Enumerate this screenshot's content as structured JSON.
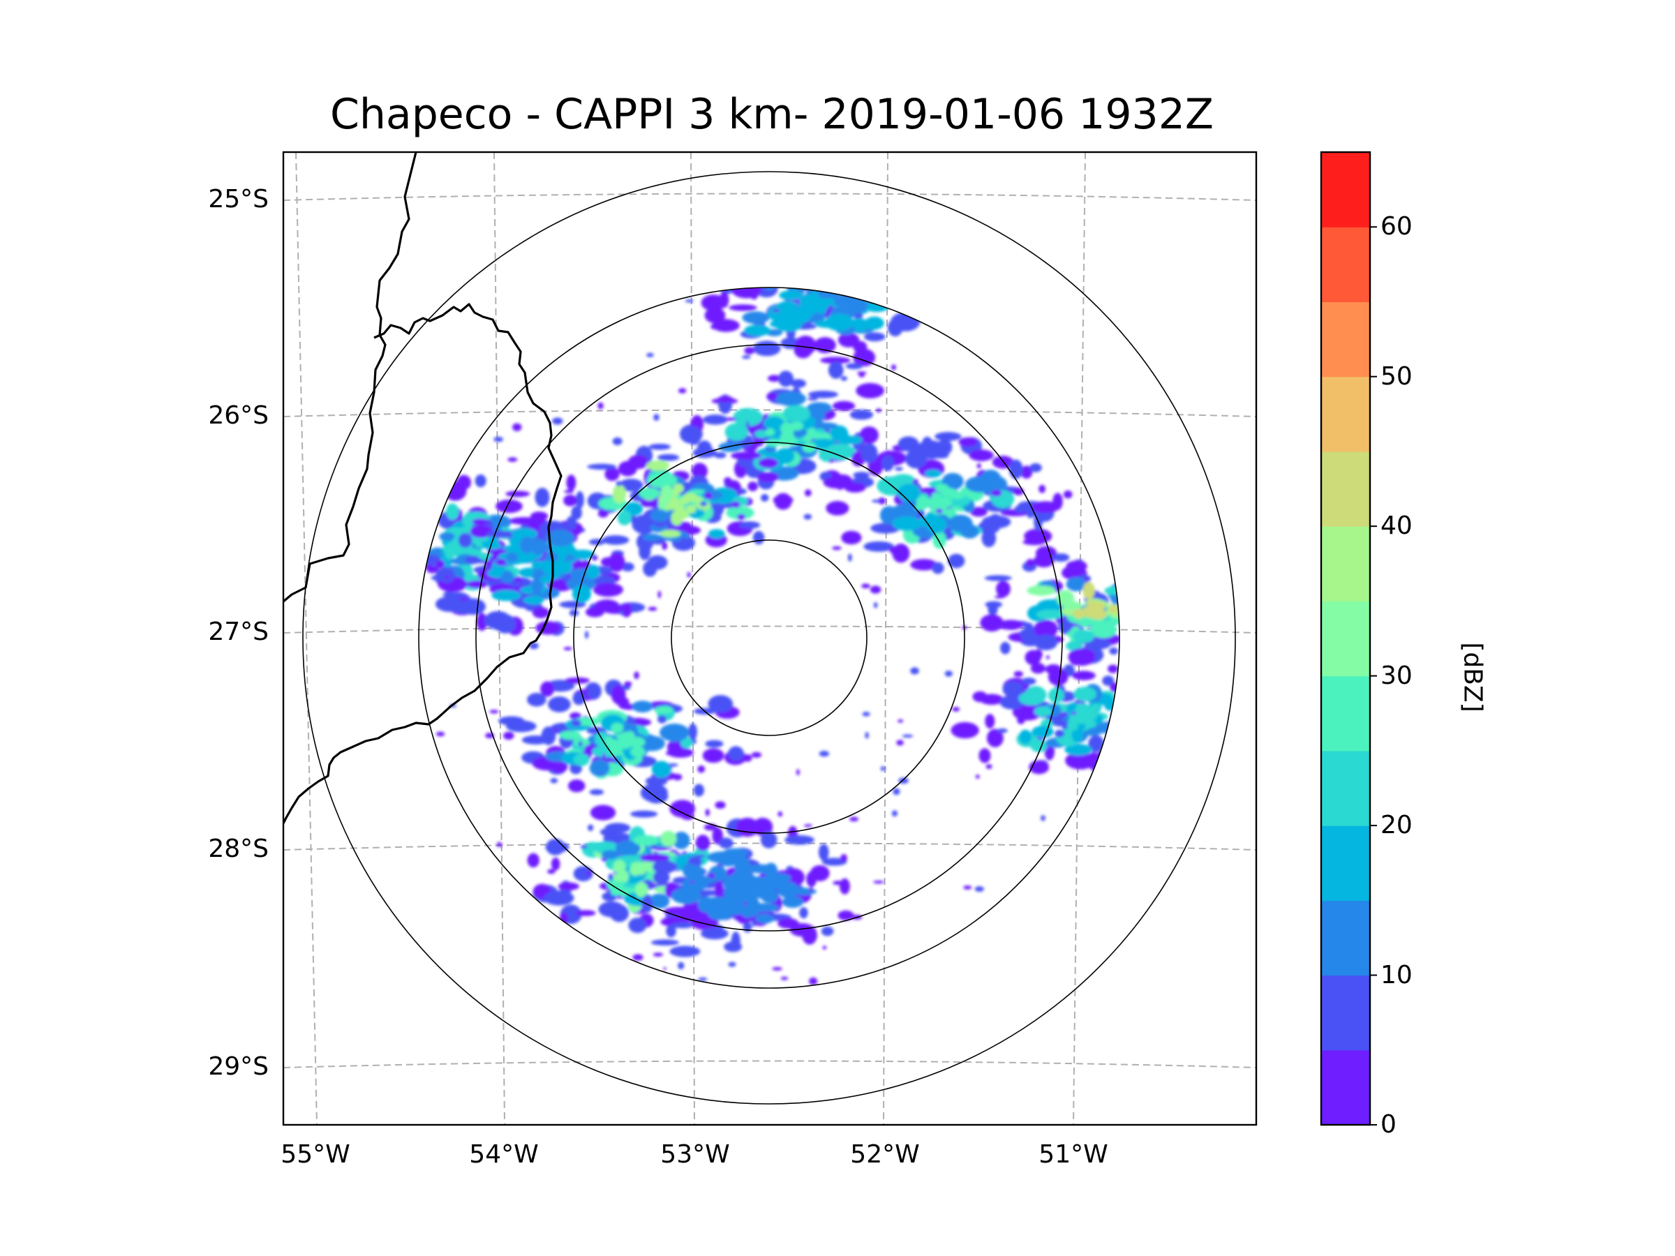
{
  "title": "Chapeco - CAPPI 3 km- 2019-01-06 1932Z",
  "lat_labels": [
    "25°S",
    "26°S",
    "27°S",
    "28°S",
    "29°S"
  ],
  "lon_labels": [
    "55°W",
    "54°W",
    "53°W",
    "52°W",
    "51°W"
  ],
  "colorbar": {
    "unit": "[dBZ]",
    "tick_labels": [
      "0",
      "10",
      "20",
      "30",
      "40",
      "50",
      "60"
    ],
    "colors": [
      "#6e1eff",
      "#4a52f5",
      "#2587ea",
      "#05b6e0",
      "#2ad9d2",
      "#4cf2bd",
      "#83fca5",
      "#a6f68c",
      "#cddb78",
      "#f1bf68",
      "#ff8e50",
      "#ff5937",
      "#fe1f1c"
    ]
  },
  "chart_data": {
    "type": "heatmap",
    "title": "Chapeco - CAPPI 3 km- 2019-01-06 1932Z",
    "xlabel": "",
    "ylabel": "",
    "x_ticks": [
      "55°W",
      "54°W",
      "53°W",
      "52°W",
      "51°W"
    ],
    "y_ticks": [
      "25°S",
      "26°S",
      "27°S",
      "28°S",
      "29°S"
    ],
    "xlim": [
      -55.18,
      -50.07
    ],
    "ylim": [
      -29.28,
      -24.78
    ],
    "colorbar_label": "[dBZ]",
    "colorbar_range": [
      0,
      65
    ],
    "colorbar_ticks": [
      0,
      10,
      20,
      30,
      40,
      50,
      60
    ],
    "radar_site": {
      "name": "Chapeco",
      "lon": -52.6,
      "lat": -27.03
    },
    "range_rings_km": [
      50,
      100,
      150,
      200,
      240
    ],
    "echo_clusters": [
      {
        "lon": -54.2,
        "lat": -26.6,
        "dbz": 25
      },
      {
        "lon": -53.8,
        "lat": -26.7,
        "dbz": 20
      },
      {
        "lon": -52.5,
        "lat": -26.1,
        "dbz": 30
      },
      {
        "lon": -53.1,
        "lat": -26.4,
        "dbz": 40
      },
      {
        "lon": -51.7,
        "lat": -26.4,
        "dbz": 30
      },
      {
        "lon": -50.9,
        "lat": -26.9,
        "dbz": 45
      },
      {
        "lon": -51.0,
        "lat": -27.4,
        "dbz": 25
      },
      {
        "lon": -53.4,
        "lat": -27.5,
        "dbz": 30
      },
      {
        "lon": -53.3,
        "lat": -28.1,
        "dbz": 35
      },
      {
        "lon": -52.8,
        "lat": -28.2,
        "dbz": 15
      },
      {
        "lon": -52.4,
        "lat": -25.5,
        "dbz": 20
      }
    ]
  }
}
